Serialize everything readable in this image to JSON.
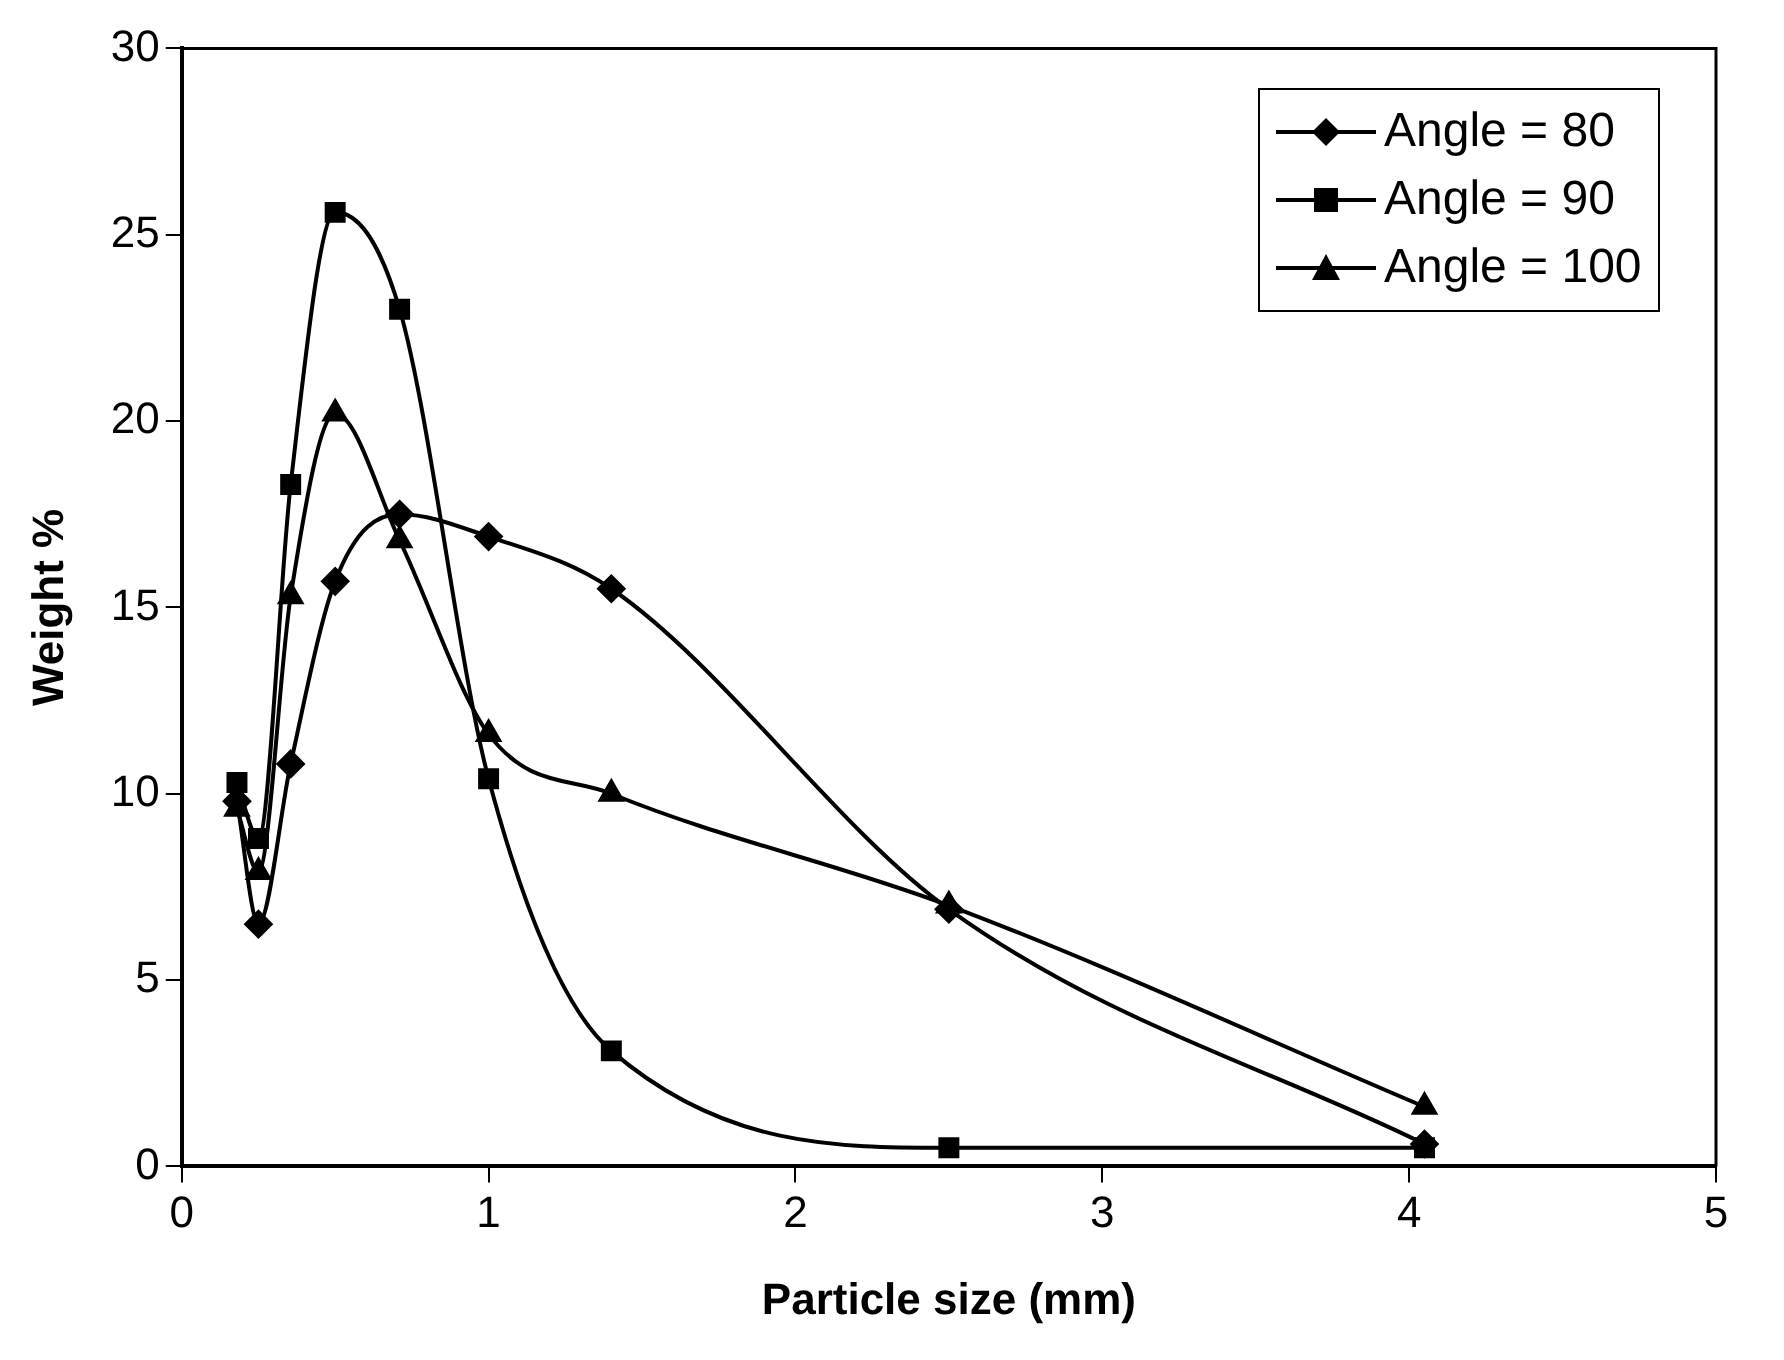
{
  "chart_data": {
    "type": "line",
    "xlabel": "Particle size (mm)",
    "ylabel": "Weight %",
    "x": [
      0.18,
      0.25,
      0.355,
      0.5,
      0.71,
      1.0,
      1.4,
      2.5,
      4.05
    ],
    "series": [
      {
        "name": "Angle = 80",
        "color": "#000000",
        "marker": "diamond",
        "values": [
          9.8,
          6.5,
          10.8,
          15.7,
          17.5,
          16.9,
          15.5,
          6.9,
          0.6
        ]
      },
      {
        "name": "Angle = 90",
        "color": "#000000",
        "marker": "square",
        "values": [
          10.3,
          8.8,
          18.3,
          25.6,
          23.0,
          10.4,
          3.1,
          0.5,
          0.5
        ]
      },
      {
        "name": "Angle = 100",
        "color": "#000000",
        "marker": "triangle",
        "values": [
          9.6,
          7.9,
          15.3,
          20.2,
          16.8,
          11.6,
          10.0,
          7.0,
          1.6
        ]
      }
    ],
    "xlim": [
      0,
      5
    ],
    "xticks": [
      0,
      1,
      2,
      3,
      4,
      5
    ],
    "ylim": [
      0,
      30
    ],
    "yticks": [
      0,
      5,
      10,
      15,
      20,
      25,
      30
    ],
    "grid": false,
    "legend": "top right",
    "line_style": "solid"
  }
}
